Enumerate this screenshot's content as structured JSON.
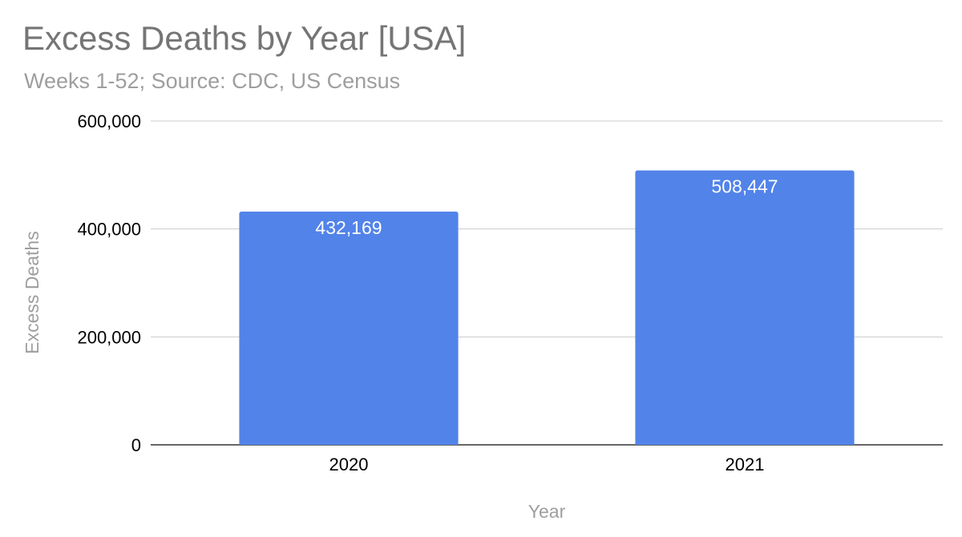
{
  "chart_data": {
    "type": "bar",
    "title": "Excess Deaths by Year [USA]",
    "subtitle": "Weeks 1-52; Source: CDC, US Census",
    "xlabel": "Year",
    "ylabel": "Excess Deaths",
    "categories": [
      "2020",
      "2021"
    ],
    "values": [
      432169,
      508447
    ],
    "value_labels": [
      "432,169",
      "508,447"
    ],
    "ylim": [
      0,
      600000
    ],
    "yticks": [
      0,
      200000,
      400000,
      600000
    ],
    "ytick_labels": [
      "0",
      "200,000",
      "400,000",
      "600,000"
    ],
    "grid": true,
    "legend": "none",
    "colors": {
      "bar": "#5283e9",
      "grid": "#cccccc",
      "axis": "#333333"
    }
  }
}
